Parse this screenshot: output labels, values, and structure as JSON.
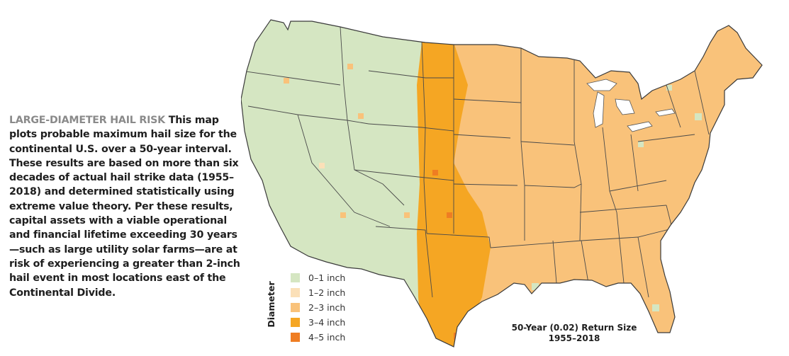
{
  "caption": {
    "kicker": "LARGE-DIAMETER HAIL RISK",
    "body": " This map plots probable maximum hail size for the continental U.S. over a 50-year interval. These results are based on more than six decades of actual hail strike data (1955–2018) and determined statistically using extreme value theory. Per these results, capital assets with a viable operational and financial lifetime exceeding 30 years—such as large utility solar  farms—are at risk of experiencing a greater than 2-inch hail event in most locations east of the Continental Divide."
  },
  "map": {
    "title_line1": "50-Year (0.02) Return Size",
    "title_line2": "1955–2018"
  },
  "legend": {
    "title": "Diameter",
    "items": [
      {
        "label": "0–1 inch",
        "color": "#d5e6c2"
      },
      {
        "label": "1–2 inch",
        "color": "#fbe0b8"
      },
      {
        "label": "2–3 inch",
        "color": "#f9c27a"
      },
      {
        "label": "3–4 inch",
        "color": "#f5a623"
      },
      {
        "label": "4–5 inch",
        "color": "#ef7d22"
      }
    ]
  }
}
